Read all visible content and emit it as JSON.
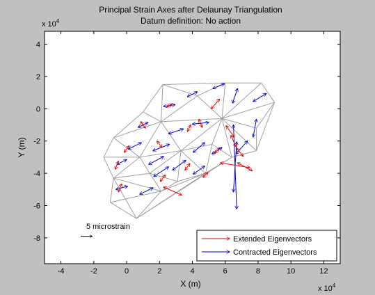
{
  "chart_data": {
    "type": "scatter",
    "title": "Principal Strain Axes after Delaunay Triangulation",
    "subtitle": "Datum definition: No action",
    "xlabel": "X (m)",
    "ylabel": "Y (m)",
    "x_exponent_label": "x 10",
    "x_exponent_power": "4",
    "y_exponent_label": "x 10",
    "y_exponent_power": "4",
    "xlim": [
      -5,
      13
    ],
    "ylim": [
      -9.6,
      4.8
    ],
    "xticks": [
      -4,
      -2,
      0,
      2,
      4,
      6,
      8,
      10,
      12
    ],
    "xtick_labels": [
      "-4",
      "-2",
      "0",
      "2",
      "4",
      "6",
      "8",
      "10",
      "12"
    ],
    "yticks": [
      4,
      2,
      0,
      -2,
      -4,
      -6,
      -8
    ],
    "ytick_labels": [
      "4",
      "2",
      "0",
      "-2",
      "-4",
      "-6",
      "-8"
    ],
    "scale_label": "5 microstrain",
    "scale_arrow": {
      "x": -2.8,
      "y": -7.9,
      "dx": 0.7
    },
    "colors": {
      "extended": "#e00000",
      "contracted": "#0000cc",
      "mesh": "#a0a0a0",
      "background": "#c0c0c0"
    },
    "legend_position": "bottom-right",
    "legend": [
      {
        "label": "Extended Eigenvectors",
        "color": "#e00000"
      },
      {
        "label": "Contracted Eigenvectors",
        "color": "#0000cc"
      }
    ],
    "mesh_nodes": [
      [
        2.2,
        1.5
      ],
      [
        6.0,
        1.6
      ],
      [
        8.2,
        1.6
      ],
      [
        9.0,
        0.4
      ],
      [
        1.0,
        -0.2
      ],
      [
        -0.8,
        -1.8
      ],
      [
        -1.4,
        -3.0
      ],
      [
        -0.8,
        -4.3
      ],
      [
        -1.0,
        -5.8
      ],
      [
        0.6,
        -6.8
      ],
      [
        4.3,
        0.8
      ],
      [
        5.8,
        -0.6
      ],
      [
        2.1,
        -0.8
      ],
      [
        3.3,
        -2.6
      ],
      [
        0.8,
        -3.0
      ],
      [
        1.4,
        -4.0
      ],
      [
        3.1,
        -4.5
      ],
      [
        5.2,
        -2.2
      ],
      [
        6.4,
        -3.0
      ],
      [
        7.9,
        -2.6
      ],
      [
        7.9,
        -1.2
      ],
      [
        4.8,
        -4.0
      ],
      [
        2.1,
        -5.1
      ]
    ],
    "mesh_edges": [
      [
        0,
        1
      ],
      [
        1,
        2
      ],
      [
        2,
        3
      ],
      [
        0,
        4
      ],
      [
        4,
        5
      ],
      [
        5,
        6
      ],
      [
        6,
        7
      ],
      [
        7,
        8
      ],
      [
        8,
        9
      ],
      [
        0,
        10
      ],
      [
        10,
        1
      ],
      [
        1,
        11
      ],
      [
        2,
        11
      ],
      [
        3,
        11
      ],
      [
        10,
        11
      ],
      [
        0,
        12
      ],
      [
        4,
        12
      ],
      [
        10,
        12
      ],
      [
        12,
        11
      ],
      [
        12,
        13
      ],
      [
        13,
        11
      ],
      [
        5,
        12
      ],
      [
        5,
        14
      ],
      [
        12,
        14
      ],
      [
        14,
        6
      ],
      [
        14,
        7
      ],
      [
        14,
        13
      ],
      [
        14,
        15
      ],
      [
        15,
        7
      ],
      [
        15,
        13
      ],
      [
        13,
        16
      ],
      [
        15,
        16
      ],
      [
        13,
        17
      ],
      [
        11,
        17
      ],
      [
        17,
        18
      ],
      [
        11,
        18
      ],
      [
        18,
        19
      ],
      [
        11,
        19
      ],
      [
        11,
        20
      ],
      [
        20,
        19
      ],
      [
        3,
        20
      ],
      [
        3,
        19
      ],
      [
        17,
        21
      ],
      [
        16,
        21
      ],
      [
        13,
        21
      ],
      [
        21,
        18
      ],
      [
        16,
        22
      ],
      [
        15,
        22
      ],
      [
        22,
        7
      ],
      [
        22,
        8
      ],
      [
        22,
        9
      ],
      [
        9,
        7
      ],
      [
        22,
        21
      ],
      [
        21,
        9
      ],
      [
        18,
        9
      ]
    ],
    "extended_vectors": [
      {
        "x": 2.6,
        "y": 0.2,
        "dx": 0.3,
        "dy": 0.2
      },
      {
        "x": 5.4,
        "y": 0.3,
        "dx": 0.5,
        "dy": 0.6
      },
      {
        "x": 4.5,
        "y": -0.9,
        "dx": 0.2,
        "dy": -0.5
      },
      {
        "x": 1.0,
        "y": -1.0,
        "dx": -0.3,
        "dy": 0.4
      },
      {
        "x": 3.8,
        "y": -1.2,
        "dx": 0.2,
        "dy": 0.4
      },
      {
        "x": 6.3,
        "y": -1.4,
        "dx": 0.5,
        "dy": -0.7
      },
      {
        "x": 0.0,
        "y": -2.5,
        "dx": 0.3,
        "dy": 0.4
      },
      {
        "x": 2.0,
        "y": -2.2,
        "dx": -0.3,
        "dy": 0.4
      },
      {
        "x": 5.5,
        "y": -2.6,
        "dx": 0.3,
        "dy": 0.3
      },
      {
        "x": 6.9,
        "y": -2.7,
        "dx": 0.4,
        "dy": -0.5
      },
      {
        "x": -0.6,
        "y": -3.5,
        "dx": 0.2,
        "dy": 0.5
      },
      {
        "x": 3.7,
        "y": -3.6,
        "dx": 0.3,
        "dy": 0.4
      },
      {
        "x": 4.8,
        "y": -4.1,
        "dx": 0.3,
        "dy": 0.3
      },
      {
        "x": 6.6,
        "y": -3.5,
        "dx": 1.8,
        "dy": -0.3
      },
      {
        "x": 7.2,
        "y": -3.6,
        "dx": 0.9,
        "dy": -0.5
      },
      {
        "x": -0.4,
        "y": -4.9,
        "dx": 0.2,
        "dy": 0.5
      },
      {
        "x": 2.2,
        "y": -4.3,
        "dx": 0.3,
        "dy": 0.4
      },
      {
        "x": 2.8,
        "y": -5.1,
        "dx": 1.1,
        "dy": -0.5
      },
      {
        "x": 6.5,
        "y": -2.0,
        "dx": -0.3,
        "dy": 0.7
      }
    ],
    "contracted_vectors": [
      {
        "x": 2.6,
        "y": 0.2,
        "dx": 0.7,
        "dy": 0.1
      },
      {
        "x": 4.0,
        "y": 0.9,
        "dx": 0.6,
        "dy": 0.3
      },
      {
        "x": 5.6,
        "y": 1.4,
        "dx": 0.7,
        "dy": 0.3
      },
      {
        "x": 6.6,
        "y": 0.8,
        "dx": 0.3,
        "dy": 0.9
      },
      {
        "x": 8.1,
        "y": 0.7,
        "dx": 0.8,
        "dy": 0.5
      },
      {
        "x": 1.0,
        "y": -1.0,
        "dx": 0.6,
        "dy": 0.3
      },
      {
        "x": 4.5,
        "y": -0.9,
        "dx": 1.0,
        "dy": 0.1
      },
      {
        "x": 3.0,
        "y": -1.4,
        "dx": 0.9,
        "dy": 0.3
      },
      {
        "x": 7.8,
        "y": -1.2,
        "dx": 0.2,
        "dy": 1.1
      },
      {
        "x": 0.5,
        "y": -2.3,
        "dx": 0.8,
        "dy": 0.4
      },
      {
        "x": 2.1,
        "y": -2.4,
        "dx": 1.0,
        "dy": 0.4
      },
      {
        "x": 4.4,
        "y": -2.4,
        "dx": 0.7,
        "dy": 0.6
      },
      {
        "x": 5.5,
        "y": -2.6,
        "dx": 0.6,
        "dy": 0.4
      },
      {
        "x": 7.0,
        "y": -2.4,
        "dx": 0.7,
        "dy": 0.8
      },
      {
        "x": -0.3,
        "y": -3.3,
        "dx": 0.6,
        "dy": 0.3
      },
      {
        "x": 1.8,
        "y": -3.2,
        "dx": 0.9,
        "dy": 0.5
      },
      {
        "x": 3.2,
        "y": -3.5,
        "dx": 0.8,
        "dy": 0.6
      },
      {
        "x": 2.1,
        "y": -3.9,
        "dx": 0.9,
        "dy": 0.6
      },
      {
        "x": 4.4,
        "y": -3.8,
        "dx": 0.7,
        "dy": 0.5
      },
      {
        "x": 6.6,
        "y": -3.6,
        "dx": 0.2,
        "dy": 3.1
      },
      {
        "x": 6.6,
        "y": -3.6,
        "dx": 0.2,
        "dy": -5.2
      },
      {
        "x": -0.3,
        "y": -4.9,
        "dx": 0.7,
        "dy": 0.2
      },
      {
        "x": 1.2,
        "y": -5.1,
        "dx": 0.8,
        "dy": 0.4
      }
    ]
  }
}
